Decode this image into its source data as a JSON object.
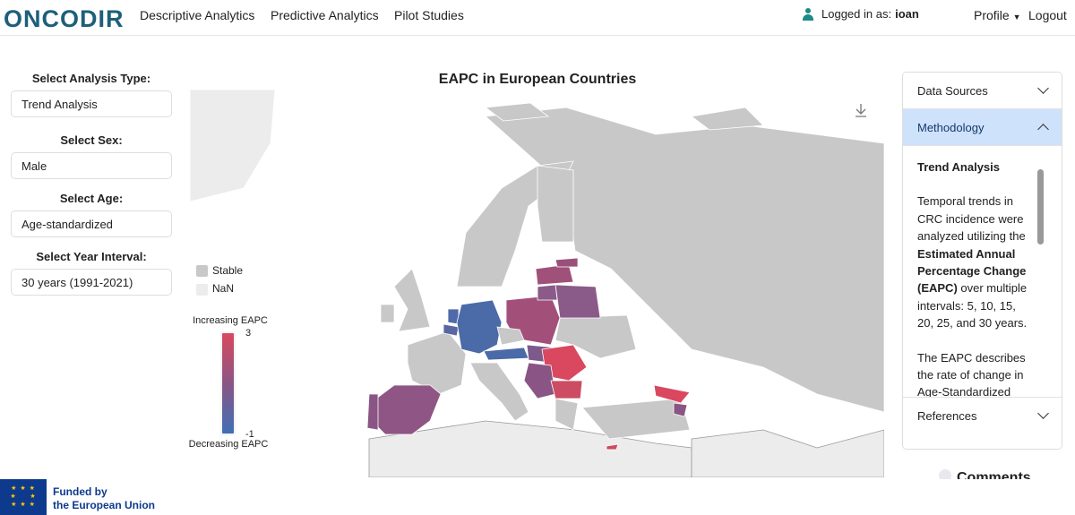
{
  "nav": {
    "logo": "ONCODIR",
    "links": [
      "Descriptive Analytics",
      "Predictive Analytics",
      "Pilot Studies"
    ],
    "logged_prefix": "Logged in as:",
    "user": "ioan",
    "profile": "Profile",
    "logout": "Logout"
  },
  "filters": [
    {
      "label": "Select Analysis Type:",
      "value": "Trend Analysis"
    },
    {
      "label": "Select Sex:",
      "value": "Male"
    },
    {
      "label": "Select Age:",
      "value": "Age-standardized"
    },
    {
      "label": "Select Year Interval:",
      "value": "30 years (1991-2021)"
    }
  ],
  "map": {
    "title": "EAPC in European Countries",
    "legend": {
      "stable": "Stable",
      "nan": "NaN",
      "increasing": "Increasing EAPC",
      "decreasing": "Decreasing EAPC",
      "max": "3",
      "min": "-1"
    },
    "colors": {
      "stable": "#c8c8c8",
      "nan": "#ececec",
      "high": "#d9485e",
      "low": "#3f6fb5"
    }
  },
  "accordion": {
    "items": [
      "Data Sources",
      "Methodology",
      "References"
    ],
    "body_title": "Trend Analysis",
    "p1a": "Temporal trends in CRC incidence were analyzed utilizing the ",
    "p1b": "Estimated Annual Percentage Change (EAPC)",
    "p1c": " over multiple intervals: 5, 10, 15, 20, 25, and 30 years.",
    "p2": "The EAPC describes the rate of change in Age-Standardized Rates"
  },
  "comments": "Comments",
  "footer": {
    "line1": "Funded by",
    "line2": "the European Union"
  }
}
